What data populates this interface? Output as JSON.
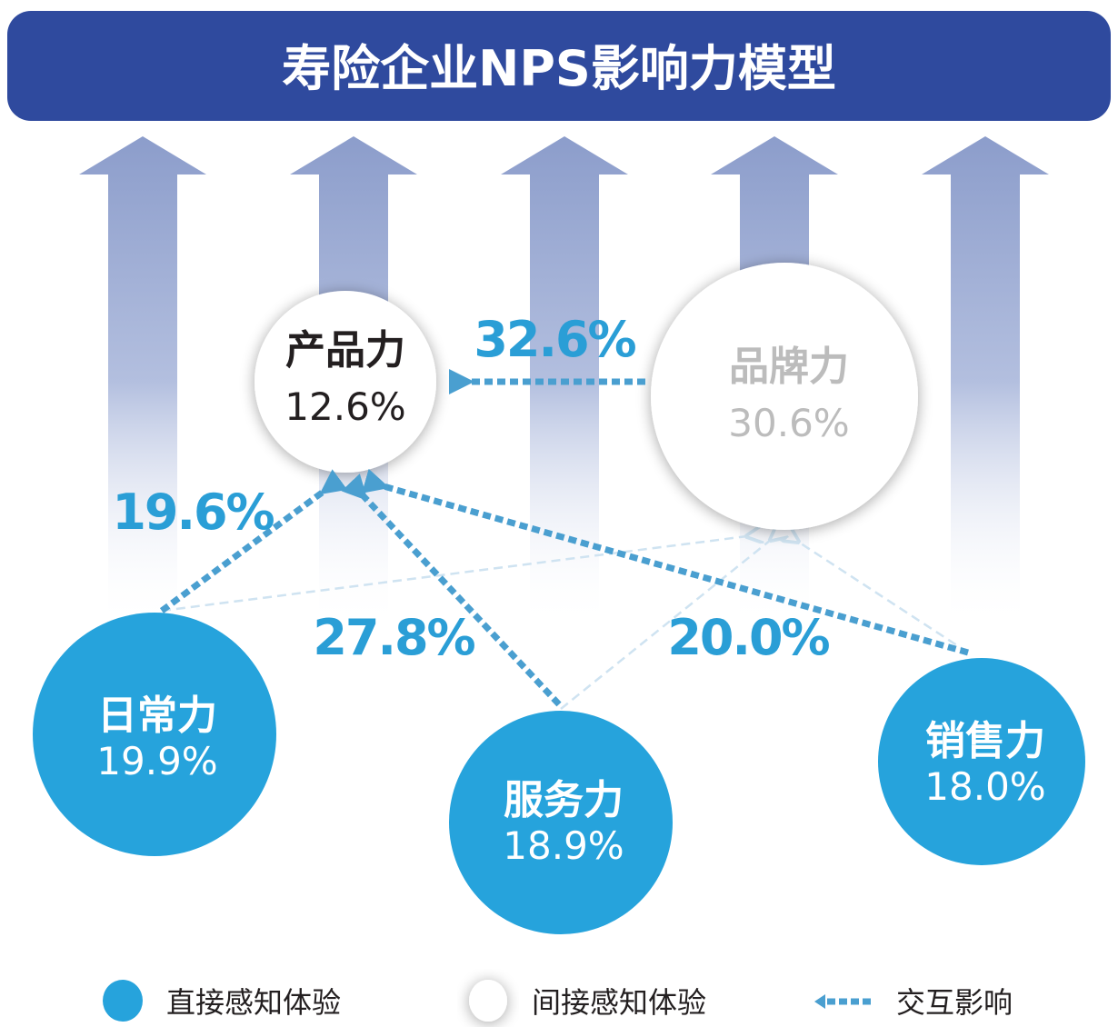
{
  "title": "寿险企业NPS影响力模型",
  "colors": {
    "header": "#2f4a9e",
    "direct": "#26a3dc",
    "arrow": "#4a9fd0",
    "label": "#2a9ed6"
  },
  "nodes": {
    "product": {
      "name": "产品力",
      "value": "12.6%"
    },
    "brand": {
      "name": "品牌力",
      "value": "30.6%"
    },
    "daily": {
      "name": "日常力",
      "value": "19.9%"
    },
    "service": {
      "name": "服务力",
      "value": "18.9%"
    },
    "sales": {
      "name": "销售力",
      "value": "18.0%"
    }
  },
  "links": {
    "brand_to_product": "32.6%",
    "daily_to_product": "19.6%",
    "service_to_product": "27.8%",
    "sales_to_product": "20.0%"
  },
  "legend": {
    "direct": "直接感知体验",
    "indirect": "间接感知体验",
    "interaction": "交互影响"
  }
}
